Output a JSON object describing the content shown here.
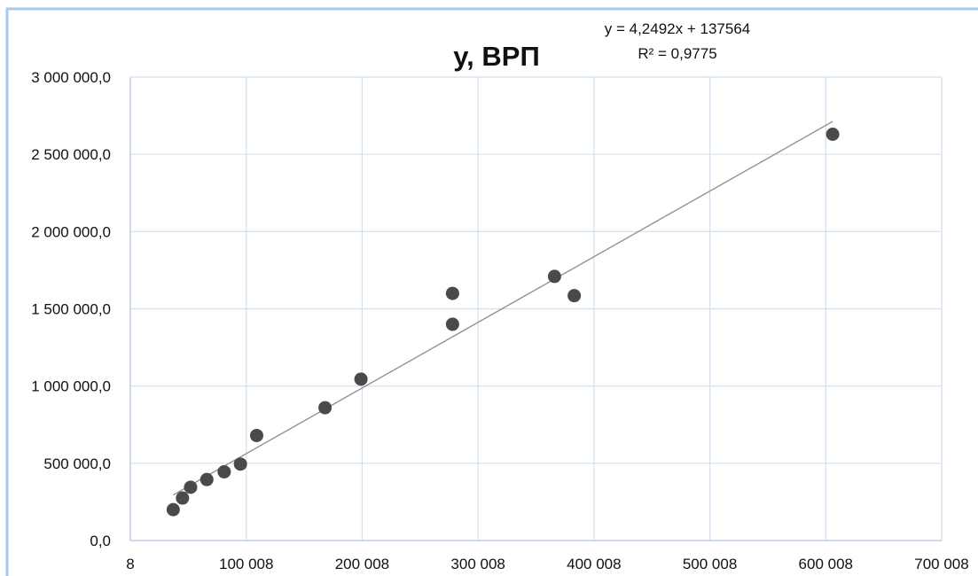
{
  "chart_data": {
    "type": "scatter",
    "title": "y, ВРП",
    "xlabel": "",
    "ylabel": "",
    "xlim": [
      8,
      700008
    ],
    "ylim": [
      0,
      3000000
    ],
    "x_ticks": [
      8,
      100008,
      200008,
      300008,
      400008,
      500008,
      600008,
      700008
    ],
    "x_tick_labels": [
      "8",
      "100 008",
      "200 008",
      "300 008",
      "400 008",
      "500 008",
      "600 008",
      "700 008"
    ],
    "y_ticks": [
      0,
      500000,
      1000000,
      1500000,
      2000000,
      2500000,
      3000000
    ],
    "y_tick_labels": [
      "0,0",
      "500 000,0",
      "1 000 000,0",
      "1 500 000,0",
      "2 000 000,0",
      "2 500 000,0",
      "3 000 000,0"
    ],
    "grid": true,
    "series": [
      {
        "points": [
          {
            "x": 37000,
            "y": 200000
          },
          {
            "x": 45000,
            "y": 275000
          },
          {
            "x": 52000,
            "y": 345000
          },
          {
            "x": 66000,
            "y": 395000
          },
          {
            "x": 81000,
            "y": 445000
          },
          {
            "x": 95000,
            "y": 495000
          },
          {
            "x": 109000,
            "y": 680000
          },
          {
            "x": 168000,
            "y": 860000
          },
          {
            "x": 199000,
            "y": 1045000
          },
          {
            "x": 278000,
            "y": 1600000
          },
          {
            "x": 278000,
            "y": 1400000
          },
          {
            "x": 366000,
            "y": 1710000
          },
          {
            "x": 383000,
            "y": 1585000
          },
          {
            "x": 606000,
            "y": 2630000
          }
        ],
        "color": "#4a4a4a"
      }
    ],
    "trendline": {
      "type": "linear",
      "slope": 4.2492,
      "intercept": 137564,
      "x_range": [
        37000,
        606000
      ],
      "color": "#8c8c8c",
      "equation": "y = 4,2492x + 137564",
      "r_squared": "R² = 0,9775"
    },
    "colors": {
      "grid": "#cfe0f3",
      "axis": "#bfcfe0",
      "frame": "#a9c9ea",
      "text": "#111111"
    }
  }
}
